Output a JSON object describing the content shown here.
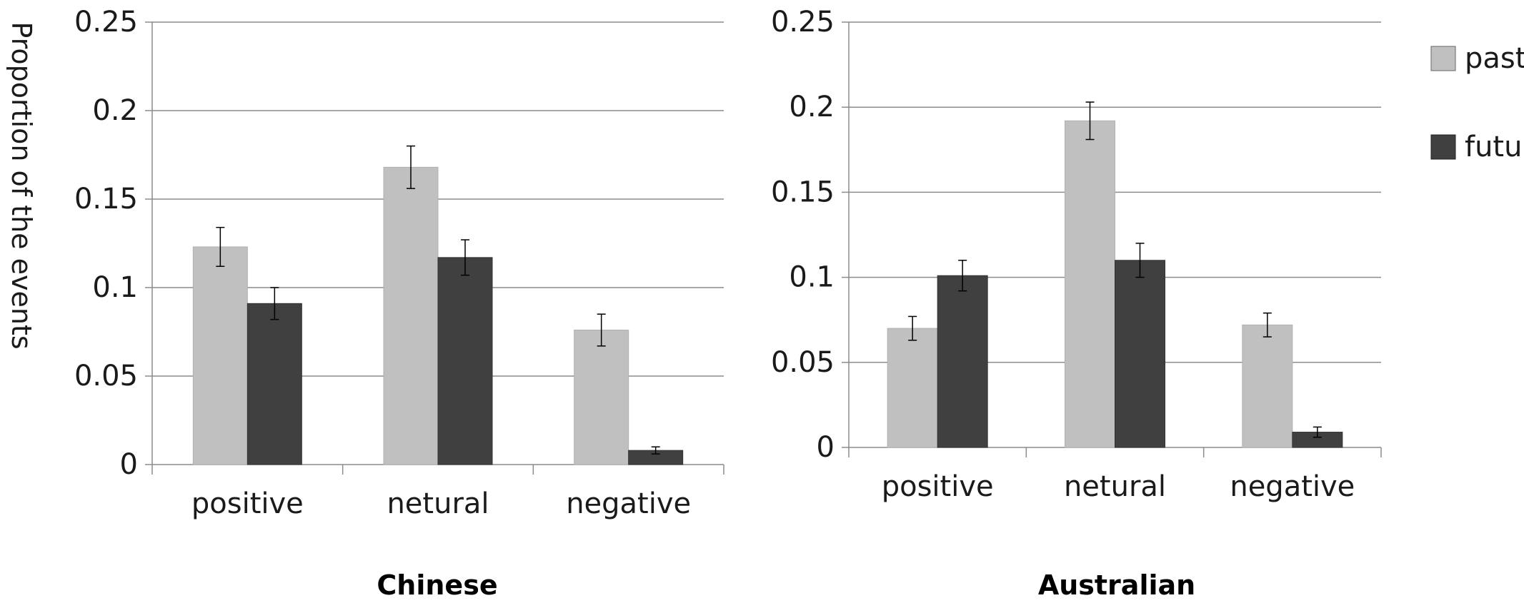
{
  "chart_data": [
    {
      "type": "bar",
      "title": "Chinese",
      "xlabel": "Chinese",
      "ylabel": "Proportion of the events",
      "categories": [
        "positive",
        "netural",
        "negative"
      ],
      "ylim": [
        0,
        0.25
      ],
      "yticks": [
        "0",
        "0.05",
        "0.1",
        "0.15",
        "0.2",
        "0.25"
      ],
      "grid": true,
      "series": [
        {
          "name": "past",
          "color": "#c0c0c0",
          "values": [
            0.123,
            0.168,
            0.076
          ],
          "errors": [
            0.011,
            0.012,
            0.009
          ]
        },
        {
          "name": "future",
          "color": "#404040",
          "values": [
            0.091,
            0.117,
            0.008
          ],
          "errors": [
            0.009,
            0.01,
            0.002
          ]
        }
      ]
    },
    {
      "type": "bar",
      "title": "Australian",
      "xlabel": "Australian",
      "ylabel": "",
      "categories": [
        "positive",
        "netural",
        "negative"
      ],
      "ylim": [
        0,
        0.25
      ],
      "yticks": [
        "0",
        "0.05",
        "0.1",
        "0.15",
        "0.2",
        "0.25"
      ],
      "grid": true,
      "legend": "right",
      "series": [
        {
          "name": "past",
          "color": "#c0c0c0",
          "values": [
            0.07,
            0.192,
            0.072
          ],
          "errors": [
            0.007,
            0.011,
            0.007
          ]
        },
        {
          "name": "future",
          "color": "#404040",
          "values": [
            0.101,
            0.11,
            0.009
          ],
          "errors": [
            0.009,
            0.01,
            0.003
          ]
        }
      ]
    }
  ]
}
